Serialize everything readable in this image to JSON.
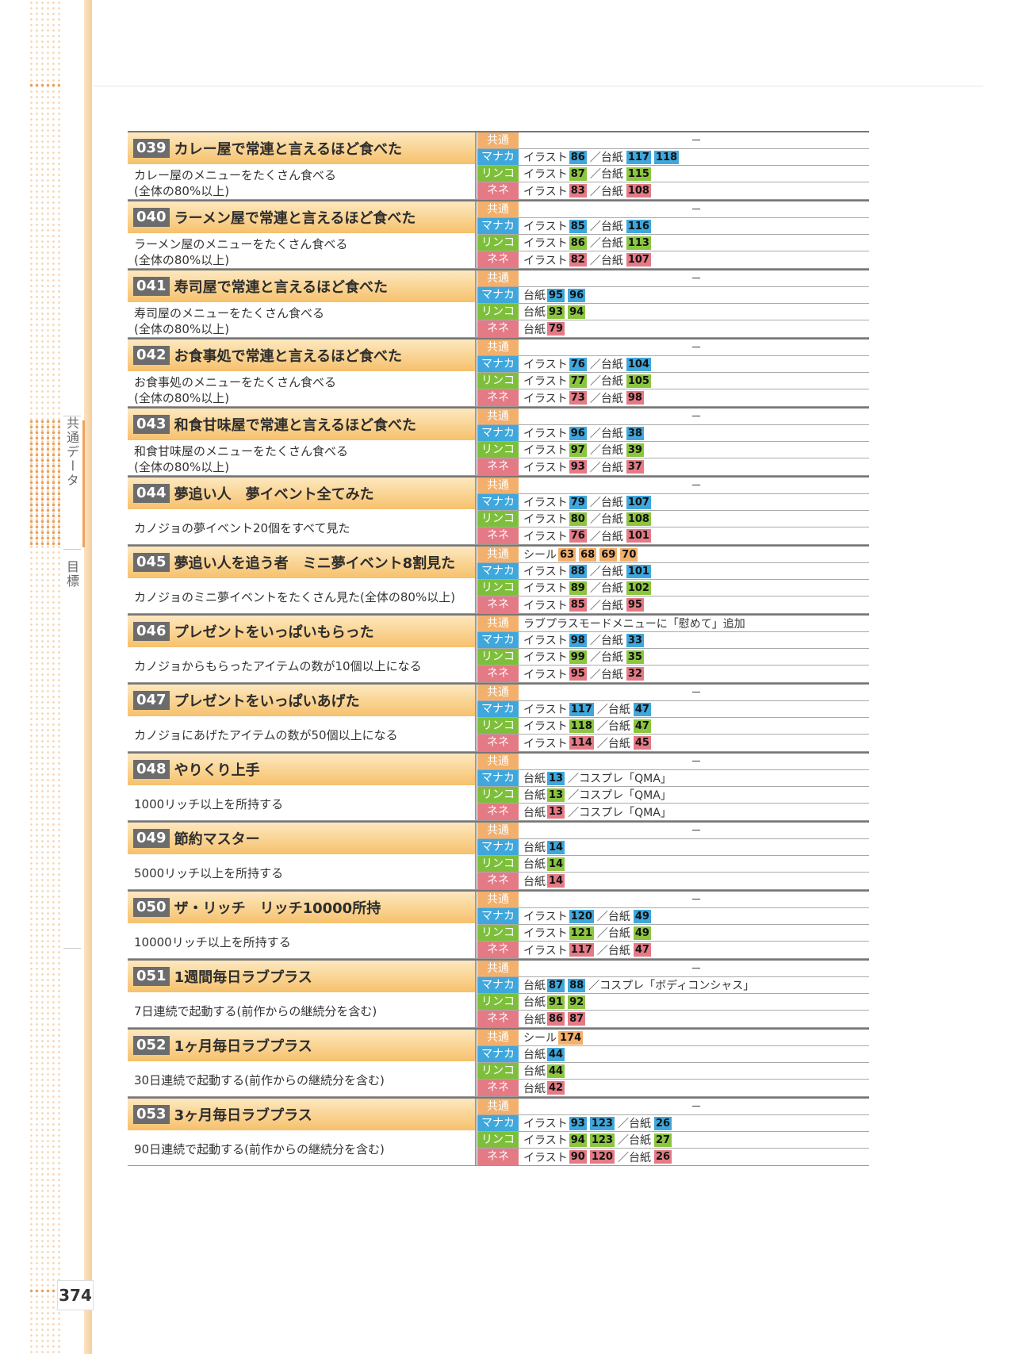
{
  "page_number": "374",
  "side_nav": {
    "section": "共通データ",
    "sub": "目標"
  },
  "entries": [
    {
      "num": "039",
      "title": "カレー屋で常連と言えるほど食べた",
      "desc": [
        "カレー屋のメニューをたくさん食べる",
        "(全体の80%以上)"
      ],
      "rows": [
        {
          "label": "共通",
          "type": "common",
          "text": "－"
        },
        {
          "label": "マナカ",
          "type": "manaka",
          "parts": [
            {
              "t": "イラスト"
            },
            {
              "c": "86"
            },
            {
              "s": "／台紙"
            },
            {
              "c": "117"
            },
            {
              "c": "118"
            }
          ]
        },
        {
          "label": "リンコ",
          "type": "rinko",
          "parts": [
            {
              "t": "イラスト"
            },
            {
              "c": "87"
            },
            {
              "s": "／台紙"
            },
            {
              "c": "115"
            }
          ]
        },
        {
          "label": "ネネ",
          "type": "nene",
          "parts": [
            {
              "t": "イラスト"
            },
            {
              "c": "83"
            },
            {
              "s": "／台紙"
            },
            {
              "c": "108"
            }
          ]
        }
      ]
    },
    {
      "num": "040",
      "title": "ラーメン屋で常連と言えるほど食べた",
      "desc": [
        "ラーメン屋のメニューをたくさん食べる",
        "(全体の80%以上)"
      ],
      "rows": [
        {
          "label": "共通",
          "type": "common",
          "text": "－"
        },
        {
          "label": "マナカ",
          "type": "manaka",
          "parts": [
            {
              "t": "イラスト"
            },
            {
              "c": "85"
            },
            {
              "s": "／台紙"
            },
            {
              "c": "116"
            }
          ]
        },
        {
          "label": "リンコ",
          "type": "rinko",
          "parts": [
            {
              "t": "イラスト"
            },
            {
              "c": "86"
            },
            {
              "s": "／台紙"
            },
            {
              "c": "113"
            }
          ]
        },
        {
          "label": "ネネ",
          "type": "nene",
          "parts": [
            {
              "t": "イラスト"
            },
            {
              "c": "82"
            },
            {
              "s": "／台紙"
            },
            {
              "c": "107"
            }
          ]
        }
      ]
    },
    {
      "num": "041",
      "title": "寿司屋で常連と言えるほど食べた",
      "desc": [
        "寿司屋のメニューをたくさん食べる",
        "(全体の80%以上)"
      ],
      "rows": [
        {
          "label": "共通",
          "type": "common",
          "text": "－"
        },
        {
          "label": "マナカ",
          "type": "manaka",
          "parts": [
            {
              "t": "台紙"
            },
            {
              "c": "95"
            },
            {
              "c": "96"
            }
          ]
        },
        {
          "label": "リンコ",
          "type": "rinko",
          "parts": [
            {
              "t": "台紙"
            },
            {
              "c": "93"
            },
            {
              "c": "94"
            }
          ]
        },
        {
          "label": "ネネ",
          "type": "nene",
          "parts": [
            {
              "t": "台紙"
            },
            {
              "c": "79"
            }
          ]
        }
      ]
    },
    {
      "num": "042",
      "title": "お食事処で常連と言えるほど食べた",
      "desc": [
        "お食事処のメニューをたくさん食べる",
        "(全体の80%以上)"
      ],
      "rows": [
        {
          "label": "共通",
          "type": "common",
          "text": "－"
        },
        {
          "label": "マナカ",
          "type": "manaka",
          "parts": [
            {
              "t": "イラスト"
            },
            {
              "c": "76"
            },
            {
              "s": "／台紙"
            },
            {
              "c": "104"
            }
          ]
        },
        {
          "label": "リンコ",
          "type": "rinko",
          "parts": [
            {
              "t": "イラスト"
            },
            {
              "c": "77"
            },
            {
              "s": "／台紙"
            },
            {
              "c": "105"
            }
          ]
        },
        {
          "label": "ネネ",
          "type": "nene",
          "parts": [
            {
              "t": "イラスト"
            },
            {
              "c": "73"
            },
            {
              "s": "／台紙"
            },
            {
              "c": "98"
            }
          ]
        }
      ]
    },
    {
      "num": "043",
      "title": "和食甘味屋で常連と言えるほど食べた",
      "desc": [
        "和食甘味屋のメニューをたくさん食べる",
        "(全体の80%以上)"
      ],
      "rows": [
        {
          "label": "共通",
          "type": "common",
          "text": "－"
        },
        {
          "label": "マナカ",
          "type": "manaka",
          "parts": [
            {
              "t": "イラスト"
            },
            {
              "c": "96"
            },
            {
              "s": "／台紙"
            },
            {
              "c": "38"
            }
          ]
        },
        {
          "label": "リンコ",
          "type": "rinko",
          "parts": [
            {
              "t": "イラスト"
            },
            {
              "c": "97"
            },
            {
              "s": "／台紙"
            },
            {
              "c": "39"
            }
          ]
        },
        {
          "label": "ネネ",
          "type": "nene",
          "parts": [
            {
              "t": "イラスト"
            },
            {
              "c": "93"
            },
            {
              "s": "／台紙"
            },
            {
              "c": "37"
            }
          ]
        }
      ]
    },
    {
      "num": "044",
      "title": "夢追い人　夢イベント全てみた",
      "desc": [
        "カノジョの夢イベント20個をすべて見た"
      ],
      "rows": [
        {
          "label": "共通",
          "type": "common",
          "text": "－"
        },
        {
          "label": "マナカ",
          "type": "manaka",
          "parts": [
            {
              "t": "イラスト"
            },
            {
              "c": "79"
            },
            {
              "s": "／台紙"
            },
            {
              "c": "107"
            }
          ]
        },
        {
          "label": "リンコ",
          "type": "rinko",
          "parts": [
            {
              "t": "イラスト"
            },
            {
              "c": "80"
            },
            {
              "s": "／台紙"
            },
            {
              "c": "108"
            }
          ]
        },
        {
          "label": "ネネ",
          "type": "nene",
          "parts": [
            {
              "t": "イラスト"
            },
            {
              "c": "76"
            },
            {
              "s": "／台紙"
            },
            {
              "c": "101"
            }
          ]
        }
      ]
    },
    {
      "num": "045",
      "title": "夢追い人を追う者　ミニ夢イベント8割見た",
      "desc": [
        "カノジョのミニ夢イベントをたくさん見た(全体の80%以上)"
      ],
      "rows": [
        {
          "label": "共通",
          "type": "common",
          "parts": [
            {
              "t": "シール"
            },
            {
              "c": "63"
            },
            {
              "c": "68"
            },
            {
              "c": "69"
            },
            {
              "c": "70"
            }
          ]
        },
        {
          "label": "マナカ",
          "type": "manaka",
          "parts": [
            {
              "t": "イラスト"
            },
            {
              "c": "88"
            },
            {
              "s": "／台紙"
            },
            {
              "c": "101"
            }
          ]
        },
        {
          "label": "リンコ",
          "type": "rinko",
          "parts": [
            {
              "t": "イラスト"
            },
            {
              "c": "89"
            },
            {
              "s": "／台紙"
            },
            {
              "c": "102"
            }
          ]
        },
        {
          "label": "ネネ",
          "type": "nene",
          "parts": [
            {
              "t": "イラスト"
            },
            {
              "c": "85"
            },
            {
              "s": "／台紙"
            },
            {
              "c": "95"
            }
          ]
        }
      ]
    },
    {
      "num": "046",
      "title": "プレゼントをいっぱいもらった",
      "desc": [
        "カノジョからもらったアイテムの数が10個以上になる"
      ],
      "rows": [
        {
          "label": "共通",
          "type": "common",
          "parts": [
            {
              "t": "ラブプラスモードメニューに「慰めて」追加"
            }
          ]
        },
        {
          "label": "マナカ",
          "type": "manaka",
          "parts": [
            {
              "t": "イラスト"
            },
            {
              "c": "98"
            },
            {
              "s": "／台紙"
            },
            {
              "c": "33"
            }
          ]
        },
        {
          "label": "リンコ",
          "type": "rinko",
          "parts": [
            {
              "t": "イラスト"
            },
            {
              "c": "99"
            },
            {
              "s": "／台紙"
            },
            {
              "c": "35"
            }
          ]
        },
        {
          "label": "ネネ",
          "type": "nene",
          "parts": [
            {
              "t": "イラスト"
            },
            {
              "c": "95"
            },
            {
              "s": "／台紙"
            },
            {
              "c": "32"
            }
          ]
        }
      ]
    },
    {
      "num": "047",
      "title": "プレゼントをいっぱいあげた",
      "desc": [
        "カノジョにあげたアイテムの数が50個以上になる"
      ],
      "rows": [
        {
          "label": "共通",
          "type": "common",
          "text": "－"
        },
        {
          "label": "マナカ",
          "type": "manaka",
          "parts": [
            {
              "t": "イラスト"
            },
            {
              "c": "117"
            },
            {
              "s": "／台紙"
            },
            {
              "c": "47"
            }
          ]
        },
        {
          "label": "リンコ",
          "type": "rinko",
          "parts": [
            {
              "t": "イラスト"
            },
            {
              "c": "118"
            },
            {
              "s": "／台紙"
            },
            {
              "c": "47"
            }
          ]
        },
        {
          "label": "ネネ",
          "type": "nene",
          "parts": [
            {
              "t": "イラスト"
            },
            {
              "c": "114"
            },
            {
              "s": "／台紙"
            },
            {
              "c": "45"
            }
          ]
        }
      ]
    },
    {
      "num": "048",
      "title": "やりくり上手",
      "desc": [
        "1000リッチ以上を所持する"
      ],
      "rows": [
        {
          "label": "共通",
          "type": "common",
          "text": "－"
        },
        {
          "label": "マナカ",
          "type": "manaka",
          "parts": [
            {
              "t": "台紙"
            },
            {
              "c": "13"
            },
            {
              "s": "／コスプレ「QMA」"
            }
          ]
        },
        {
          "label": "リンコ",
          "type": "rinko",
          "parts": [
            {
              "t": "台紙"
            },
            {
              "c": "13"
            },
            {
              "s": "／コスプレ「QMA」"
            }
          ]
        },
        {
          "label": "ネネ",
          "type": "nene",
          "parts": [
            {
              "t": "台紙"
            },
            {
              "c": "13"
            },
            {
              "s": "／コスプレ「QMA」"
            }
          ]
        }
      ]
    },
    {
      "num": "049",
      "title": "節約マスター",
      "desc": [
        "5000リッチ以上を所持する"
      ],
      "rows": [
        {
          "label": "共通",
          "type": "common",
          "text": "－"
        },
        {
          "label": "マナカ",
          "type": "manaka",
          "parts": [
            {
              "t": "台紙"
            },
            {
              "c": "14"
            }
          ]
        },
        {
          "label": "リンコ",
          "type": "rinko",
          "parts": [
            {
              "t": "台紙"
            },
            {
              "c": "14"
            }
          ]
        },
        {
          "label": "ネネ",
          "type": "nene",
          "parts": [
            {
              "t": "台紙"
            },
            {
              "c": "14"
            }
          ]
        }
      ]
    },
    {
      "num": "050",
      "title": "ザ・リッチ　リッチ10000所持",
      "desc": [
        "10000リッチ以上を所持する"
      ],
      "rows": [
        {
          "label": "共通",
          "type": "common",
          "text": "－"
        },
        {
          "label": "マナカ",
          "type": "manaka",
          "parts": [
            {
              "t": "イラスト"
            },
            {
              "c": "120"
            },
            {
              "s": "／台紙"
            },
            {
              "c": "49"
            }
          ]
        },
        {
          "label": "リンコ",
          "type": "rinko",
          "parts": [
            {
              "t": "イラスト"
            },
            {
              "c": "121"
            },
            {
              "s": "／台紙"
            },
            {
              "c": "49"
            }
          ]
        },
        {
          "label": "ネネ",
          "type": "nene",
          "parts": [
            {
              "t": "イラスト"
            },
            {
              "c": "117"
            },
            {
              "s": "／台紙"
            },
            {
              "c": "47"
            }
          ]
        }
      ]
    },
    {
      "num": "051",
      "title": "1週間毎日ラブプラス",
      "desc": [
        "7日連続で起動する(前作からの継続分を含む)"
      ],
      "rows": [
        {
          "label": "共通",
          "type": "common",
          "text": "－"
        },
        {
          "label": "マナカ",
          "type": "manaka",
          "parts": [
            {
              "t": "台紙"
            },
            {
              "c": "87"
            },
            {
              "c": "88"
            },
            {
              "s": "／コスプレ「ボディコンシャス」"
            }
          ]
        },
        {
          "label": "リンコ",
          "type": "rinko",
          "parts": [
            {
              "t": "台紙"
            },
            {
              "c": "91"
            },
            {
              "c": "92"
            }
          ]
        },
        {
          "label": "ネネ",
          "type": "nene",
          "parts": [
            {
              "t": "台紙"
            },
            {
              "c": "86"
            },
            {
              "c": "87"
            }
          ]
        }
      ]
    },
    {
      "num": "052",
      "title": "1ヶ月毎日ラブプラス",
      "desc": [
        "30日連続で起動する(前作からの継続分を含む)"
      ],
      "rows": [
        {
          "label": "共通",
          "type": "common",
          "parts": [
            {
              "t": "シール"
            },
            {
              "c": "174"
            }
          ]
        },
        {
          "label": "マナカ",
          "type": "manaka",
          "parts": [
            {
              "t": "台紙"
            },
            {
              "c": "44"
            }
          ]
        },
        {
          "label": "リンコ",
          "type": "rinko",
          "parts": [
            {
              "t": "台紙"
            },
            {
              "c": "44"
            }
          ]
        },
        {
          "label": "ネネ",
          "type": "nene",
          "parts": [
            {
              "t": "台紙"
            },
            {
              "c": "42"
            }
          ]
        }
      ]
    },
    {
      "num": "053",
      "title": "3ヶ月毎日ラブプラス",
      "desc": [
        "90日連続で起動する(前作からの継続分を含む)"
      ],
      "rows": [
        {
          "label": "共通",
          "type": "common",
          "text": "－"
        },
        {
          "label": "マナカ",
          "type": "manaka",
          "parts": [
            {
              "t": "イラスト"
            },
            {
              "c": "93"
            },
            {
              "c": "123"
            },
            {
              "s": "／台紙"
            },
            {
              "c": "26"
            }
          ]
        },
        {
          "label": "リンコ",
          "type": "rinko",
          "parts": [
            {
              "t": "イラスト"
            },
            {
              "c": "94"
            },
            {
              "c": "123"
            },
            {
              "s": "／台紙"
            },
            {
              "c": "27"
            }
          ]
        },
        {
          "label": "ネネ",
          "type": "nene",
          "parts": [
            {
              "t": "イラスト"
            },
            {
              "c": "90"
            },
            {
              "c": "120"
            },
            {
              "s": "／台紙"
            },
            {
              "c": "26"
            }
          ]
        }
      ]
    }
  ]
}
